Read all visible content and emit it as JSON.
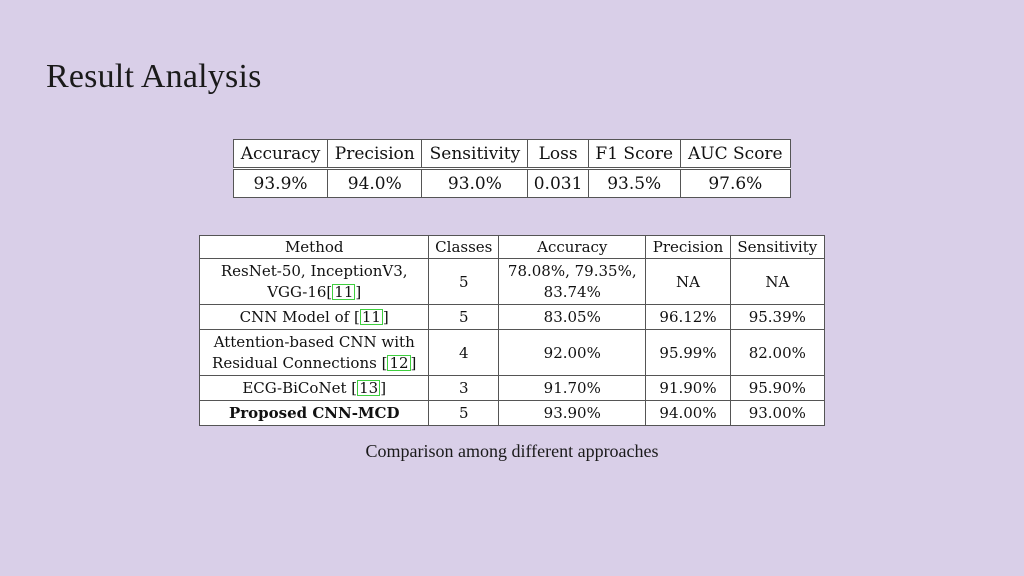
{
  "slide": {
    "title": "Result Analysis",
    "caption": "Comparison among different approaches"
  },
  "metrics_table": {
    "headers": [
      "Accuracy",
      "Precision",
      "Sensitivity",
      "Loss",
      "F1 Score",
      "AUC Score"
    ],
    "values": [
      "93.9%",
      "94.0%",
      "93.0%",
      "0.031",
      "93.5%",
      "97.6%"
    ]
  },
  "comparison_table": {
    "headers": [
      "Method",
      "Classes",
      "Accuracy",
      "Precision",
      "Sensitivity"
    ],
    "rows": [
      {
        "method_line1": "ResNet-50, InceptionV3,",
        "method_line2": "VGG-16",
        "cite": "11",
        "classes": "5",
        "accuracy_line1": "78.08%, 79.35%,",
        "accuracy_line2": "83.74%",
        "precision": "NA",
        "sensitivity": "NA"
      },
      {
        "method": "CNN Model of",
        "cite": "11",
        "classes": "5",
        "accuracy": "83.05%",
        "precision": "96.12%",
        "sensitivity": "95.39%"
      },
      {
        "method_line1": "Attention-based CNN with",
        "method_line2": "Residual Connections",
        "cite": "12",
        "classes": "4",
        "accuracy": "92.00%",
        "precision": "95.99%",
        "sensitivity": "82.00%"
      },
      {
        "method": "ECG-BiCoNet",
        "cite": "13",
        "classes": "3",
        "accuracy": "91.70%",
        "precision": "91.90%",
        "sensitivity": "95.90%"
      },
      {
        "method": "Proposed CNN-MCD",
        "classes": "5",
        "accuracy": "93.90%",
        "precision": "94.00%",
        "sensitivity": "93.00%"
      }
    ]
  }
}
